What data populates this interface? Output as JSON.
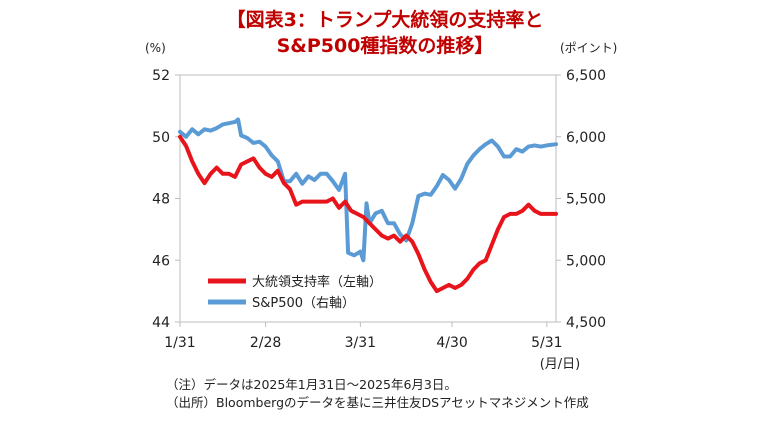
{
  "title_line1": "【図表3：トランプ大統領の支持率と",
  "title_line2": "S&P500種指数の推移】",
  "notes": [
    "（注）データは2025年1月31日～2025年6月3日。",
    "（出所）Bloombergのデータを基に三井住友DSアセットマネジメント作成"
  ],
  "colors": {
    "approval": "#e8141b",
    "sp500": "#5b9bd5",
    "title": "#c00000"
  },
  "chart_data": {
    "type": "line",
    "title": "【図表3：トランプ大統領の支持率と S&P500種指数の推移】",
    "x_tick_labels": [
      "1/31",
      "2/28",
      "3/31",
      "4/30",
      "5/31"
    ],
    "x_tick_days": [
      0,
      28,
      59,
      89,
      120
    ],
    "x_range_days": [
      0,
      123
    ],
    "xlabel": "(月/日)",
    "y_left": {
      "label": "(%)",
      "range": [
        44,
        52
      ],
      "ticks": [
        44,
        46,
        48,
        50,
        52
      ],
      "tick_labels": [
        "44",
        "46",
        "48",
        "50",
        "52"
      ]
    },
    "y_right": {
      "label": "(ポイント)",
      "range": [
        4500,
        6500
      ],
      "ticks": [
        4500,
        5000,
        5500,
        6000,
        6500
      ],
      "tick_labels": [
        "4,500",
        "5,000",
        "5,500",
        "6,000",
        "6,500"
      ]
    },
    "legend_position": "lower-left",
    "grid": false,
    "series": [
      {
        "name": "大統領支持率（左軸）",
        "axis": "left",
        "points": [
          [
            0,
            50.0
          ],
          [
            2,
            49.7
          ],
          [
            4,
            49.2
          ],
          [
            6,
            48.8
          ],
          [
            8,
            48.5
          ],
          [
            10,
            48.8
          ],
          [
            12,
            49.0
          ],
          [
            14,
            48.8
          ],
          [
            16,
            48.8
          ],
          [
            18,
            48.7
          ],
          [
            20,
            49.1
          ],
          [
            22,
            49.2
          ],
          [
            24,
            49.3
          ],
          [
            26,
            49.0
          ],
          [
            28,
            48.8
          ],
          [
            30,
            48.7
          ],
          [
            32,
            48.9
          ],
          [
            34,
            48.5
          ],
          [
            36,
            48.3
          ],
          [
            38,
            47.8
          ],
          [
            40,
            47.9
          ],
          [
            42,
            47.9
          ],
          [
            44,
            47.9
          ],
          [
            46,
            47.9
          ],
          [
            48,
            47.9
          ],
          [
            50,
            48.0
          ],
          [
            52,
            47.7
          ],
          [
            54,
            47.9
          ],
          [
            56,
            47.6
          ],
          [
            58,
            47.5
          ],
          [
            60,
            47.4
          ],
          [
            62,
            47.2
          ],
          [
            64,
            47.0
          ],
          [
            66,
            46.8
          ],
          [
            68,
            46.7
          ],
          [
            70,
            46.8
          ],
          [
            72,
            46.6
          ],
          [
            74,
            46.8
          ],
          [
            76,
            46.6
          ],
          [
            78,
            46.2
          ],
          [
            80,
            45.7
          ],
          [
            82,
            45.3
          ],
          [
            84,
            45.0
          ],
          [
            86,
            45.1
          ],
          [
            88,
            45.2
          ],
          [
            90,
            45.1
          ],
          [
            92,
            45.2
          ],
          [
            94,
            45.4
          ],
          [
            96,
            45.7
          ],
          [
            98,
            45.9
          ],
          [
            100,
            46.0
          ],
          [
            102,
            46.5
          ],
          [
            104,
            47.0
          ],
          [
            106,
            47.4
          ],
          [
            108,
            47.5
          ],
          [
            110,
            47.5
          ],
          [
            112,
            47.6
          ],
          [
            114,
            47.8
          ],
          [
            116,
            47.6
          ],
          [
            118,
            47.5
          ],
          [
            120,
            47.5
          ],
          [
            123,
            47.5
          ]
        ]
      },
      {
        "name": "S&P500（右軸）",
        "axis": "right",
        "points": [
          [
            0,
            6040
          ],
          [
            2,
            6000
          ],
          [
            4,
            6060
          ],
          [
            6,
            6020
          ],
          [
            8,
            6060
          ],
          [
            10,
            6050
          ],
          [
            12,
            6070
          ],
          [
            14,
            6100
          ],
          [
            16,
            6110
          ],
          [
            18,
            6120
          ],
          [
            19,
            6140
          ],
          [
            20,
            6010
          ],
          [
            22,
            5990
          ],
          [
            24,
            5950
          ],
          [
            26,
            5960
          ],
          [
            28,
            5920
          ],
          [
            30,
            5850
          ],
          [
            32,
            5800
          ],
          [
            34,
            5640
          ],
          [
            36,
            5640
          ],
          [
            38,
            5700
          ],
          [
            40,
            5620
          ],
          [
            42,
            5680
          ],
          [
            44,
            5650
          ],
          [
            46,
            5700
          ],
          [
            48,
            5700
          ],
          [
            50,
            5640
          ],
          [
            52,
            5570
          ],
          [
            54,
            5700
          ],
          [
            55,
            5060
          ],
          [
            57,
            5040
          ],
          [
            59,
            5070
          ],
          [
            60,
            5000
          ],
          [
            61,
            5460
          ],
          [
            62,
            5300
          ],
          [
            64,
            5380
          ],
          [
            66,
            5400
          ],
          [
            68,
            5300
          ],
          [
            70,
            5300
          ],
          [
            72,
            5210
          ],
          [
            74,
            5160
          ],
          [
            76,
            5300
          ],
          [
            78,
            5520
          ],
          [
            80,
            5540
          ],
          [
            82,
            5530
          ],
          [
            84,
            5600
          ],
          [
            86,
            5690
          ],
          [
            88,
            5650
          ],
          [
            90,
            5580
          ],
          [
            92,
            5660
          ],
          [
            94,
            5780
          ],
          [
            96,
            5850
          ],
          [
            98,
            5900
          ],
          [
            100,
            5940
          ],
          [
            102,
            5970
          ],
          [
            104,
            5920
          ],
          [
            106,
            5840
          ],
          [
            108,
            5840
          ],
          [
            110,
            5900
          ],
          [
            112,
            5880
          ],
          [
            114,
            5920
          ],
          [
            116,
            5930
          ],
          [
            118,
            5920
          ],
          [
            120,
            5930
          ],
          [
            123,
            5940
          ]
        ]
      }
    ]
  }
}
